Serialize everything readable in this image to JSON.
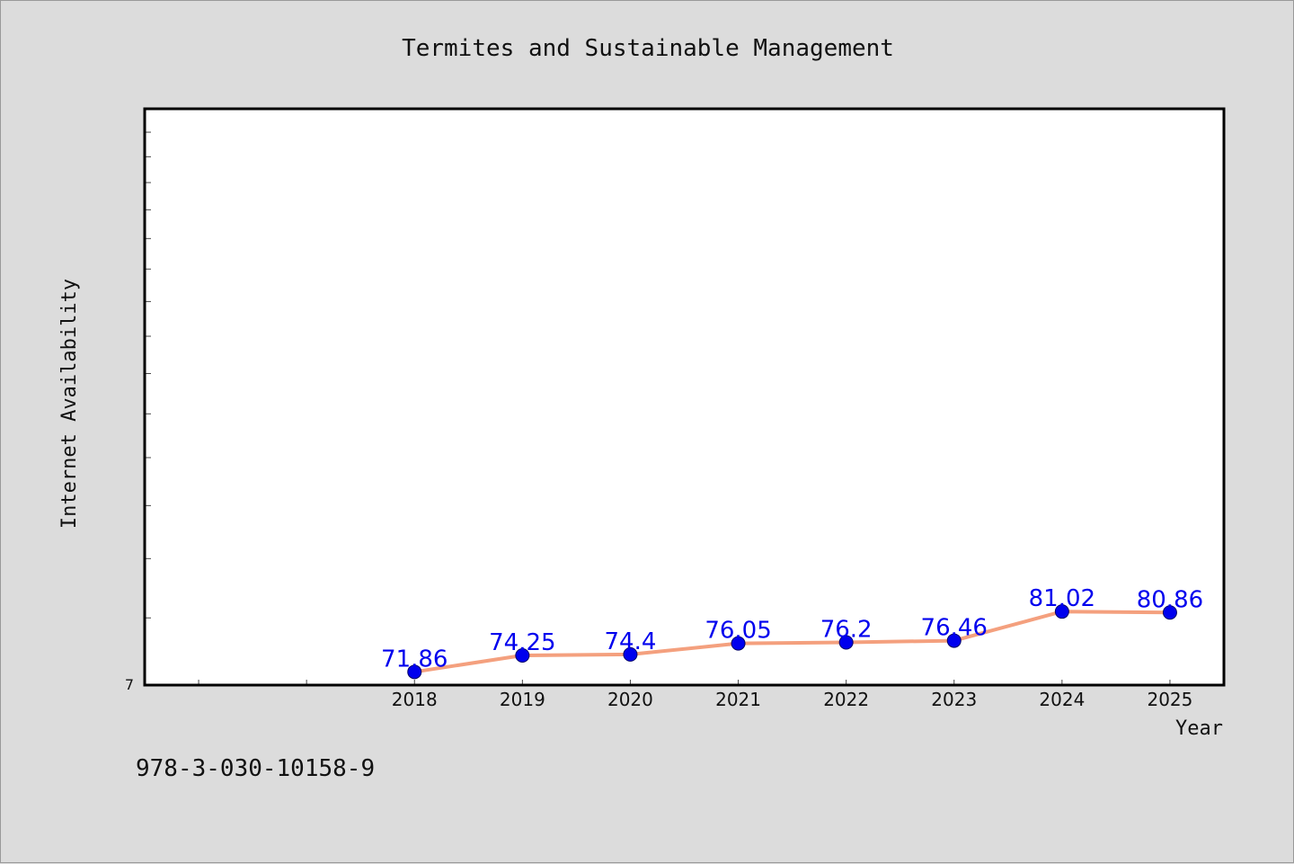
{
  "chart_data": {
    "type": "line",
    "title": "Termites and Sustainable Management",
    "xlabel": "Year",
    "ylabel": "Internet Availability",
    "x": [
      2018,
      2019,
      2020,
      2021,
      2022,
      2023,
      2024,
      2025
    ],
    "series": [
      {
        "values": [
          71.86,
          74.25,
          74.4,
          76.05,
          76.2,
          76.46,
          81.02,
          80.86
        ],
        "data_labels": [
          "71.86",
          "74.25",
          "74.4",
          "76.05",
          "76.2",
          "76.46",
          "81.02",
          "80.86"
        ]
      }
    ],
    "xlim": [
      2015.5,
      2025.5
    ],
    "ylim": [
      7,
      22
    ],
    "y_scale": "log",
    "y_tick_labels": [
      "7"
    ],
    "grid": false,
    "line_color": "#f4a07e",
    "marker_color": "#0000ee",
    "label_color": "#0000ee",
    "plot_background": "#ffffff",
    "page_background": "#dcdcdc"
  },
  "footer": {
    "code": "978-3-030-10158-9"
  }
}
